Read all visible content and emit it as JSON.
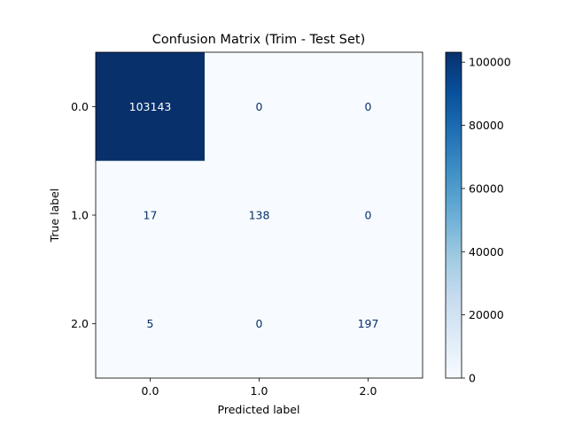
{
  "chart_data": {
    "type": "heatmap",
    "title": "Confusion Matrix (Trim - Test Set)",
    "xlabel": "Predicted label",
    "ylabel": "True label",
    "x_categories": [
      "0.0",
      "1.0",
      "2.0"
    ],
    "y_categories": [
      "0.0",
      "1.0",
      "2.0"
    ],
    "values": [
      [
        103143,
        0,
        0
      ],
      [
        17,
        138,
        0
      ],
      [
        5,
        0,
        197
      ]
    ],
    "colormap": "Blues",
    "colorbar": {
      "range": [
        0,
        103143
      ],
      "ticks": [
        0,
        20000,
        40000,
        60000,
        80000,
        100000
      ],
      "tick_labels": [
        "0",
        "20000",
        "40000",
        "60000",
        "80000",
        "100000"
      ]
    },
    "grid": false
  }
}
